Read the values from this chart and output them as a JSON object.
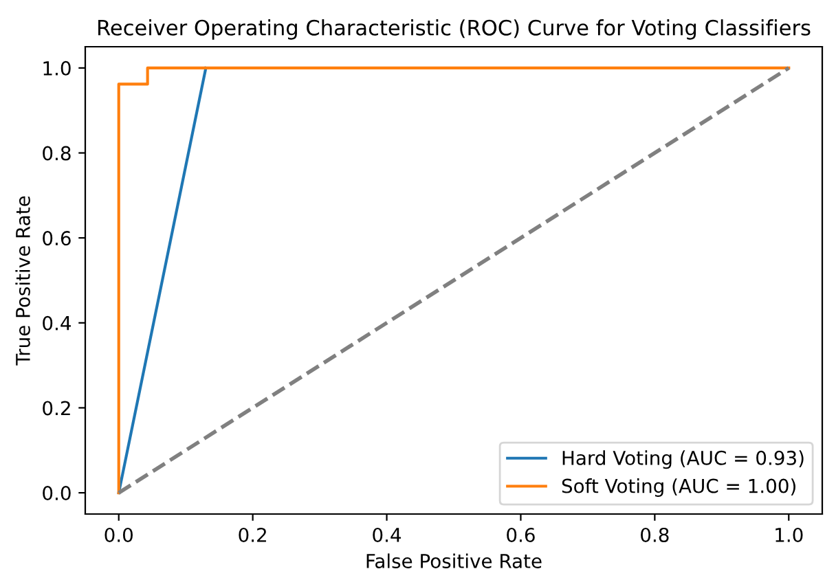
{
  "chart_data": {
    "type": "line",
    "title": "Receiver Operating Characteristic (ROC) Curve for Voting Classifiers",
    "xlabel": "False Positive Rate",
    "ylabel": "True Positive Rate",
    "series": [
      {
        "name": "Hard Voting (AUC = 0.93)",
        "color": "#1f77b4",
        "x": [
          0,
          0.13
        ],
        "values": [
          0,
          1
        ]
      },
      {
        "name": "Soft Voting (AUC = 1.00)",
        "color": "#ff7f0e",
        "x": [
          0,
          0,
          0.043,
          0.043,
          1
        ],
        "values": [
          0,
          0.962,
          0.962,
          1,
          1
        ]
      },
      {
        "color": "#808080",
        "line_style": "dashed",
        "x": [
          0,
          1
        ],
        "values": [
          0,
          1
        ]
      }
    ],
    "xlim": [
      -0.05,
      1.05
    ],
    "ylim": [
      -0.05,
      1.05
    ],
    "xticks": [
      {
        "value": 0,
        "label": "0.0"
      },
      0.2,
      0.4,
      0.6,
      0.8,
      {
        "value": 1,
        "label": "1.0"
      }
    ],
    "yticks": [
      {
        "value": 0,
        "label": "0.0"
      },
      0.2,
      0.4,
      0.6,
      0.8,
      {
        "value": 1,
        "label": "1.0"
      }
    ],
    "legend": "lower right",
    "grid": false
  }
}
